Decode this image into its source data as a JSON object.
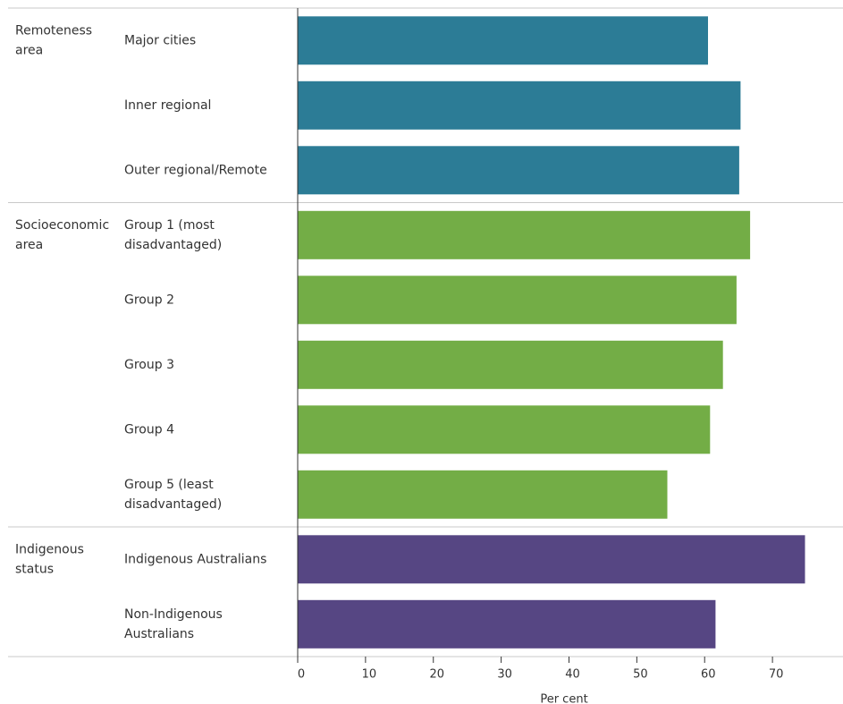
{
  "chart_data": {
    "type": "bar",
    "orientation": "horizontal",
    "groups": [
      {
        "name": [
          "Remoteness",
          "area"
        ],
        "color": "#2C7C96",
        "categories": [
          {
            "label": [
              "Major cities"
            ],
            "value": 60.5
          },
          {
            "label": [
              "Inner regional"
            ],
            "value": 65.3
          },
          {
            "label": [
              "Outer regional/Remote"
            ],
            "value": 65.1
          }
        ]
      },
      {
        "name": [
          "Socioeconomic",
          "area"
        ],
        "color": "#73AD46",
        "categories": [
          {
            "label": [
              "Group 1 (most",
              "disadvantaged)"
            ],
            "value": 66.7
          },
          {
            "label": [
              "Group 2"
            ],
            "value": 64.7
          },
          {
            "label": [
              "Group 3"
            ],
            "value": 62.7
          },
          {
            "label": [
              "Group 4"
            ],
            "value": 60.8
          },
          {
            "label": [
              "Group 5 (least",
              "disadvantaged)"
            ],
            "value": 54.5
          }
        ]
      },
      {
        "name": [
          "Indigenous",
          "status"
        ],
        "color": "#564683",
        "categories": [
          {
            "label": [
              "Indigenous Australians"
            ],
            "value": 74.8
          },
          {
            "label": [
              "Non-Indigenous",
              "Australians"
            ],
            "value": 61.6
          }
        ]
      }
    ],
    "x_ticks": [
      0,
      10,
      20,
      30,
      40,
      50,
      60,
      70
    ],
    "xlim": [
      0,
      77.5
    ],
    "xlabel": "Per cent",
    "grid": false
  }
}
